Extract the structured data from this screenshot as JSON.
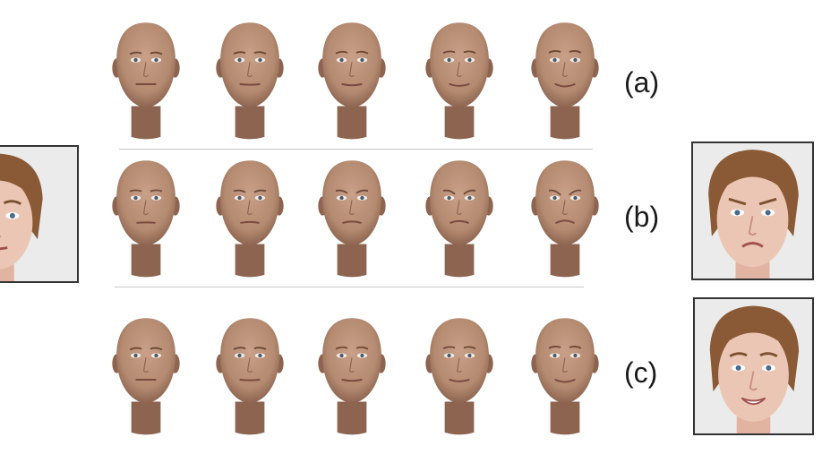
{
  "figure": {
    "rows": [
      {
        "id": "a",
        "label": "(a)",
        "expression": "happy",
        "steps": [
          0,
          0.25,
          0.5,
          0.75,
          1.0
        ],
        "photo": false
      },
      {
        "id": "b",
        "label": "(b)",
        "expression": "angry",
        "steps": [
          0,
          0.25,
          0.5,
          0.75,
          1.0
        ],
        "photo": true
      },
      {
        "id": "c",
        "label": "(c)",
        "expression": "happy",
        "steps": [
          0,
          0.25,
          0.5,
          0.75,
          1.0
        ],
        "photo": true
      }
    ],
    "left_photo": {
      "expression": "neutral"
    },
    "colors": {
      "skin": "#b48a70",
      "skin_shade": "#8c6450",
      "divider": "#c8c8c8",
      "photo_skin": "#ecc6b4",
      "hair": "#8a5a36"
    }
  }
}
